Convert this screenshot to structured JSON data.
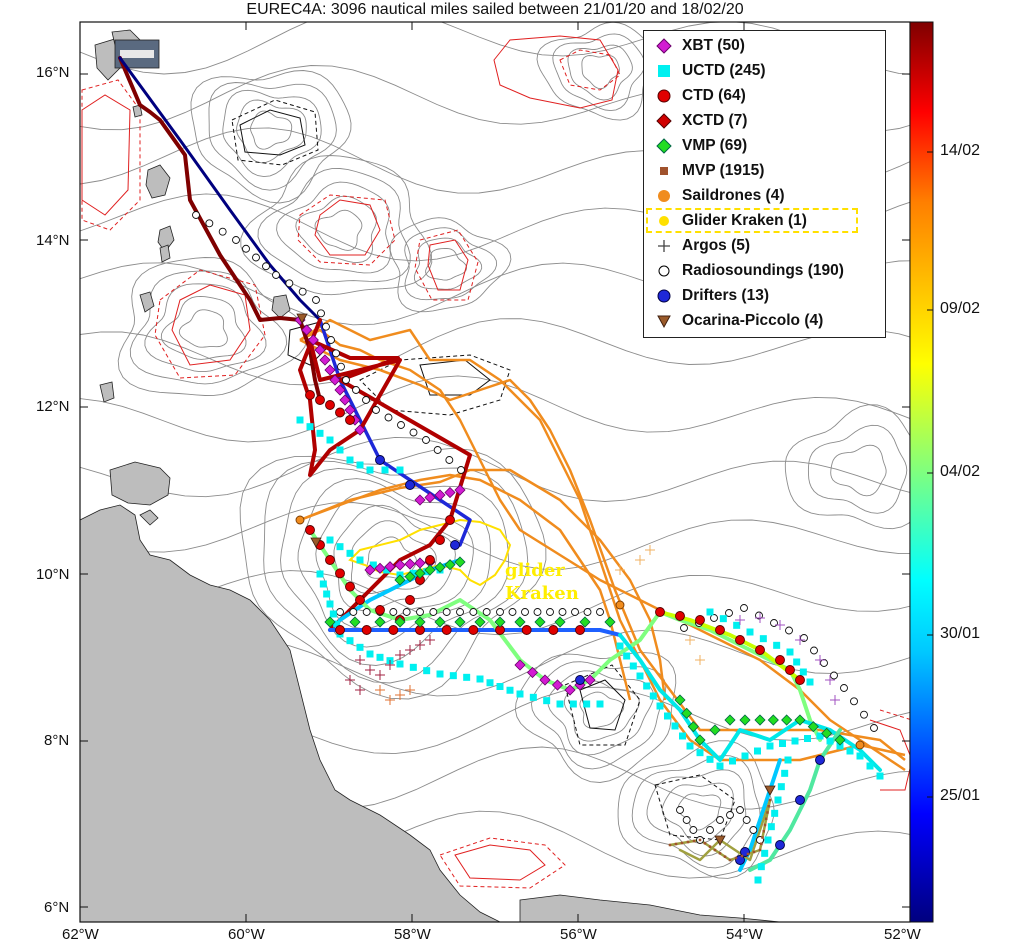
{
  "title": "EUREC4A: 3096 nautical miles sailed between 21/01/20 and 18/02/20",
  "map": {
    "lon_ticks": [
      "62°W",
      "60°W",
      "58°W",
      "56°W",
      "54°W",
      "52°W"
    ],
    "lat_ticks": [
      "16°N",
      "14°N",
      "12°N",
      "10°N",
      "8°N",
      "6°N"
    ],
    "lon_range": [
      -62,
      -52
    ],
    "lat_range": [
      5.85,
      16.6
    ],
    "contour_lines": "gray SST contours, red and black dashed/solid eddy contours"
  },
  "legend": [
    {
      "label": "XBT (50)",
      "marker": "diamond",
      "color": "#d21cd2"
    },
    {
      "label": "UCTD (245)",
      "marker": "square",
      "color": "#00f0f0"
    },
    {
      "label": "CTD (64)",
      "marker": "circle",
      "color": "#e00000"
    },
    {
      "label": "XCTD (7)",
      "marker": "diamond",
      "color": "#d00000"
    },
    {
      "label": "VMP (69)",
      "marker": "diamond",
      "color": "#22dd22"
    },
    {
      "label": "MVP (1915)",
      "marker": "square-small",
      "color": "#a0522d"
    },
    {
      "label": "Saildrones (4)",
      "marker": "circle",
      "color": "#f08c1e"
    },
    {
      "label": "Glider Kraken (1)",
      "marker": "circle",
      "color": "#ffe000",
      "highlight": true
    },
    {
      "label": "Argos (5)",
      "marker": "plus",
      "color": "#444444"
    },
    {
      "label": "Radiosoundings (190)",
      "marker": "circle-open",
      "color": "#000000"
    },
    {
      "label": "Drifters (13)",
      "marker": "circle",
      "color": "#1e28d8"
    },
    {
      "label": "Ocarina-Piccolo (4)",
      "marker": "triangle-down",
      "color": "#9a5a2a"
    }
  ],
  "colorbar": {
    "ticks": [
      "25/01",
      "30/01",
      "04/02",
      "09/02",
      "14/02"
    ],
    "palette": "jet",
    "range": [
      "21/01/20",
      "18/02/20"
    ]
  },
  "annotation": {
    "line1": "glider",
    "line2": "Kraken",
    "color": "#ffee00"
  }
}
